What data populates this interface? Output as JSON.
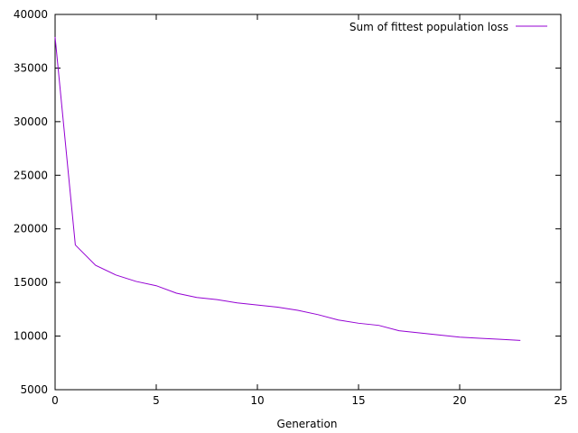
{
  "chart_data": {
    "type": "line",
    "title": "",
    "xlabel": "Generation",
    "ylabel": "",
    "xlim": [
      0,
      25
    ],
    "ylim": [
      5000,
      40000
    ],
    "x_ticks": [
      0,
      5,
      10,
      15,
      20,
      25
    ],
    "y_ticks": [
      5000,
      10000,
      15000,
      20000,
      25000,
      30000,
      35000,
      40000
    ],
    "grid": false,
    "legend_position": "top-right",
    "series": [
      {
        "name": "Sum of fittest population loss",
        "color": "#9400d3",
        "x": [
          0,
          1,
          2,
          3,
          4,
          5,
          6,
          7,
          8,
          9,
          10,
          11,
          12,
          13,
          14,
          15,
          16,
          17,
          18,
          19,
          20,
          21,
          22,
          23
        ],
        "y": [
          37900,
          18500,
          16600,
          15700,
          15100,
          14700,
          14000,
          13600,
          13400,
          13100,
          12900,
          12700,
          12400,
          12000,
          11500,
          11200,
          11000,
          10500,
          10300,
          10100,
          9900,
          9800,
          9700,
          9600
        ]
      }
    ]
  }
}
